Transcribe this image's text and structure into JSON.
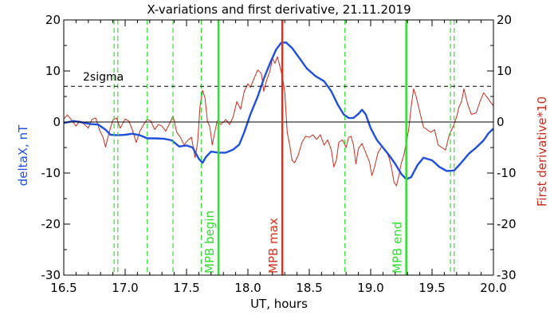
{
  "chart_data": {
    "type": "line",
    "title": "X-variations and first derivative, 21.11.2019",
    "xlabel": "UT, hours",
    "ylabel_left": "deltaX, nT",
    "ylabel_right": "First derivative*10",
    "xlim": [
      16.5,
      20.0
    ],
    "ylim_left": [
      -30,
      20
    ],
    "ylim_right": [
      -30,
      20
    ],
    "x_ticks": [
      "16.5",
      "17.0",
      "17.5",
      "18.0",
      "18.5",
      "19.0",
      "19.5",
      "20.0"
    ],
    "y_ticks": [
      "-30",
      "-20",
      "-10",
      "0",
      "10",
      "20"
    ],
    "grid": false,
    "colors": {
      "deltaX": "#1f4fdc",
      "derivative": "#cc2a1c",
      "green_markers": "#2fe02f",
      "mpb_max": "#e0301c",
      "threshold": "#000000"
    },
    "threshold": {
      "label": "2sigma",
      "value": 7.0
    },
    "zero_line": 0,
    "markers": [
      {
        "x": 17.76,
        "label": "MPB begin",
        "style": "solid",
        "color": "#2fe02f"
      },
      {
        "x": 18.28,
        "label": "MPB max",
        "style": "solid",
        "color": "#e0301c"
      },
      {
        "x": 19.29,
        "label": "MPB end",
        "style": "solid",
        "color": "#2fe02f"
      }
    ],
    "dashed_markers": [
      16.91,
      16.94,
      17.18,
      17.39,
      17.62,
      18.79,
      19.65,
      19.68
    ],
    "series": [
      {
        "name": "deltaX, nT",
        "color": "#1f4fdc",
        "points": [
          [
            16.5,
            -0.2
          ],
          [
            16.58,
            0.2
          ],
          [
            16.65,
            -0.1
          ],
          [
            16.72,
            -0.4
          ],
          [
            16.78,
            -0.5
          ],
          [
            16.84,
            -1.5
          ],
          [
            16.88,
            -2.5
          ],
          [
            16.94,
            -2.6
          ],
          [
            17.0,
            -2.5
          ],
          [
            17.06,
            -2.3
          ],
          [
            17.12,
            -2.6
          ],
          [
            17.18,
            -3.2
          ],
          [
            17.25,
            -3.2
          ],
          [
            17.32,
            -3.3
          ],
          [
            17.38,
            -3.6
          ],
          [
            17.44,
            -4.8
          ],
          [
            17.5,
            -4.6
          ],
          [
            17.55,
            -5.0
          ],
          [
            17.6,
            -7.2
          ],
          [
            17.63,
            -8.0
          ],
          [
            17.66,
            -6.8
          ],
          [
            17.7,
            -5.8
          ],
          [
            17.76,
            -6.0
          ],
          [
            17.82,
            -6.0
          ],
          [
            17.88,
            -5.4
          ],
          [
            17.93,
            -4.4
          ],
          [
            17.97,
            -2.0
          ],
          [
            18.02,
            1.5
          ],
          [
            18.08,
            5.0
          ],
          [
            18.13,
            8.5
          ],
          [
            18.18,
            11.5
          ],
          [
            18.23,
            14.2
          ],
          [
            18.27,
            15.5
          ],
          [
            18.31,
            15.6
          ],
          [
            18.36,
            14.5
          ],
          [
            18.42,
            12.5
          ],
          [
            18.48,
            10.5
          ],
          [
            18.55,
            9.0
          ],
          [
            18.62,
            8.0
          ],
          [
            18.68,
            6.0
          ],
          [
            18.73,
            3.5
          ],
          [
            18.78,
            1.5
          ],
          [
            18.82,
            0.8
          ],
          [
            18.86,
            0.8
          ],
          [
            18.9,
            1.6
          ],
          [
            18.93,
            2.4
          ],
          [
            18.96,
            1.5
          ],
          [
            19.0,
            -1.2
          ],
          [
            19.05,
            -3.5
          ],
          [
            19.1,
            -5.0
          ],
          [
            19.15,
            -6.5
          ],
          [
            19.2,
            -8.2
          ],
          [
            19.25,
            -10.2
          ],
          [
            19.29,
            -11.2
          ],
          [
            19.33,
            -10.8
          ],
          [
            19.38,
            -8.5
          ],
          [
            19.43,
            -7.0
          ],
          [
            19.5,
            -7.5
          ],
          [
            19.56,
            -8.8
          ],
          [
            19.62,
            -9.6
          ],
          [
            19.68,
            -9.5
          ],
          [
            19.73,
            -8.2
          ],
          [
            19.8,
            -6.2
          ],
          [
            19.86,
            -5.0
          ],
          [
            19.92,
            -3.6
          ],
          [
            19.96,
            -2.2
          ],
          [
            20.0,
            -1.3
          ]
        ]
      },
      {
        "name": "First derivative*10",
        "color": "#cc2a1c",
        "points": [
          [
            16.5,
            0.6
          ],
          [
            16.53,
            1.4
          ],
          [
            16.56,
            0.5
          ],
          [
            16.6,
            -0.8
          ],
          [
            16.63,
            0.2
          ],
          [
            16.67,
            -0.5
          ],
          [
            16.7,
            -1.2
          ],
          [
            16.73,
            0.5
          ],
          [
            16.76,
            0.8
          ],
          [
            16.79,
            -1.5
          ],
          [
            16.82,
            -3.0
          ],
          [
            16.84,
            -4.9
          ],
          [
            16.87,
            -2.0
          ],
          [
            16.9,
            0.4
          ],
          [
            16.93,
            0.8
          ],
          [
            16.96,
            -1.2
          ],
          [
            17.0,
            0.6
          ],
          [
            17.03,
            0.2
          ],
          [
            17.06,
            -1.6
          ],
          [
            17.09,
            -4.0
          ],
          [
            17.12,
            -1.8
          ],
          [
            17.15,
            -0.5
          ],
          [
            17.18,
            0.5
          ],
          [
            17.21,
            0.2
          ],
          [
            17.24,
            -1.5
          ],
          [
            17.27,
            -0.5
          ],
          [
            17.3,
            -0.8
          ],
          [
            17.33,
            -1.8
          ],
          [
            17.36,
            -0.4
          ],
          [
            17.39,
            1.2
          ],
          [
            17.42,
            -2.0
          ],
          [
            17.45,
            -3.0
          ],
          [
            17.48,
            -4.5
          ],
          [
            17.51,
            -3.6
          ],
          [
            17.54,
            -3.0
          ],
          [
            17.57,
            -7.0
          ],
          [
            17.59,
            -4.0
          ],
          [
            17.61,
            3.0
          ],
          [
            17.63,
            6.2
          ],
          [
            17.65,
            4.8
          ],
          [
            17.67,
            0.2
          ],
          [
            17.69,
            -1.0
          ],
          [
            17.71,
            -4.5
          ],
          [
            17.73,
            -2.0
          ],
          [
            17.75,
            0.2
          ],
          [
            17.78,
            -0.5
          ],
          [
            17.82,
            0.5
          ],
          [
            17.85,
            -0.5
          ],
          [
            17.88,
            1.0
          ],
          [
            17.91,
            4.0
          ],
          [
            17.94,
            2.5
          ],
          [
            17.97,
            6.0
          ],
          [
            18.0,
            7.5
          ],
          [
            18.02,
            6.8
          ],
          [
            18.05,
            8.5
          ],
          [
            18.08,
            10.2
          ],
          [
            18.11,
            9.5
          ],
          [
            18.13,
            6.0
          ],
          [
            18.15,
            8.0
          ],
          [
            18.18,
            10.0
          ],
          [
            18.2,
            12.5
          ],
          [
            18.22,
            11.5
          ],
          [
            18.24,
            12.8
          ],
          [
            18.26,
            11.0
          ],
          [
            18.28,
            9.0
          ],
          [
            18.3,
            6.0
          ],
          [
            18.32,
            -2.0
          ],
          [
            18.34,
            -4.5
          ],
          [
            18.36,
            -7.5
          ],
          [
            18.38,
            -8.0
          ],
          [
            18.41,
            -6.5
          ],
          [
            18.44,
            -4.0
          ],
          [
            18.47,
            -2.8
          ],
          [
            18.5,
            -3.0
          ],
          [
            18.53,
            -2.5
          ],
          [
            18.56,
            -3.4
          ],
          [
            18.59,
            -2.5
          ],
          [
            18.62,
            -4.5
          ],
          [
            18.65,
            -3.5
          ],
          [
            18.68,
            -5.5
          ],
          [
            18.7,
            -8.8
          ],
          [
            18.72,
            -7.5
          ],
          [
            18.74,
            -4.0
          ],
          [
            18.77,
            -3.5
          ],
          [
            18.8,
            -5.0
          ],
          [
            18.82,
            -3.0
          ],
          [
            18.84,
            -2.8
          ],
          [
            18.86,
            -4.5
          ],
          [
            18.88,
            -8.2
          ],
          [
            18.9,
            -5.2
          ],
          [
            18.93,
            -4.2
          ],
          [
            18.96,
            -6.0
          ],
          [
            18.99,
            -7.8
          ],
          [
            19.01,
            -10.5
          ],
          [
            19.03,
            -9.0
          ],
          [
            19.06,
            -6.0
          ],
          [
            19.09,
            -4.8
          ],
          [
            19.12,
            -5.5
          ],
          [
            19.15,
            -7.0
          ],
          [
            19.17,
            -9.0
          ],
          [
            19.19,
            -11.8
          ],
          [
            19.21,
            -12.5
          ],
          [
            19.23,
            -10.5
          ],
          [
            19.25,
            -8.0
          ],
          [
            19.27,
            -6.5
          ],
          [
            19.29,
            -4.0
          ],
          [
            19.31,
            -1.5
          ],
          [
            19.33,
            3.0
          ],
          [
            19.35,
            6.5
          ],
          [
            19.37,
            5.0
          ],
          [
            19.4,
            2.0
          ],
          [
            19.43,
            -1.0
          ],
          [
            19.46,
            -1.5
          ],
          [
            19.49,
            -2.0
          ],
          [
            19.52,
            -1.5
          ],
          [
            19.55,
            -4.5
          ],
          [
            19.58,
            -5.0
          ],
          [
            19.61,
            -5.5
          ],
          [
            19.64,
            -2.5
          ],
          [
            19.67,
            -1.0
          ],
          [
            19.7,
            1.0
          ],
          [
            19.72,
            3.0
          ],
          [
            19.74,
            4.0
          ],
          [
            19.76,
            6.5
          ],
          [
            19.79,
            3.5
          ],
          [
            19.82,
            1.5
          ],
          [
            19.86,
            1.8
          ],
          [
            19.89,
            4.0
          ],
          [
            19.92,
            5.7
          ],
          [
            19.95,
            4.8
          ],
          [
            19.98,
            3.8
          ],
          [
            20.0,
            3.2
          ]
        ]
      }
    ]
  }
}
